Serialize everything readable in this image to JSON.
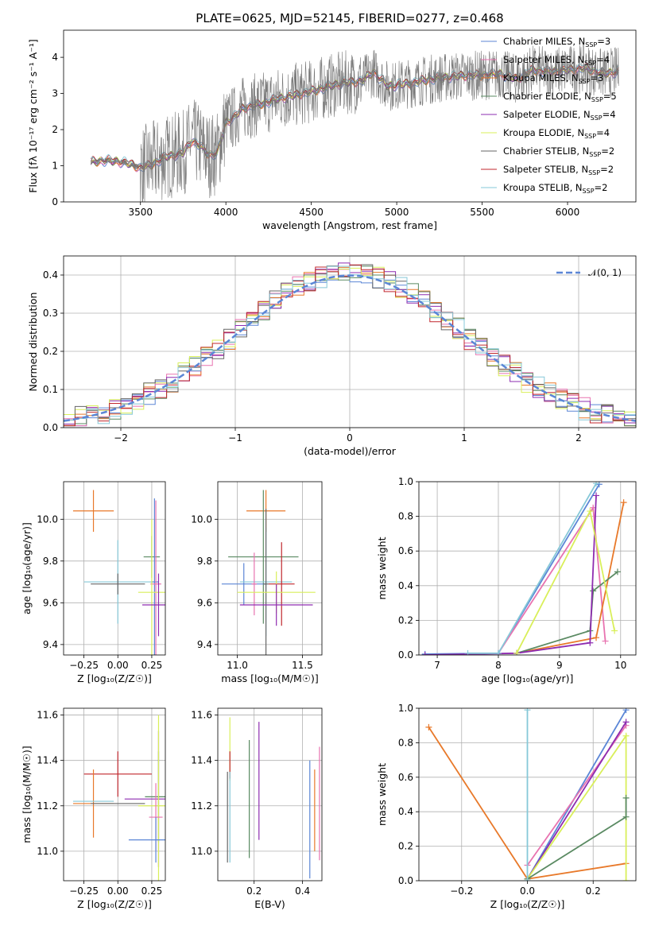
{
  "figure": {
    "title": "PLATE=0625, MJD=52145, FIBERID=0277, z=0.468"
  },
  "colors": {
    "chabrier_miles": "#5b86d6",
    "salpeter_miles": "#e873b0",
    "kroupa_miles": "#e8792a",
    "chabrier_elodie": "#5a8a62",
    "salpeter_elodie": "#8e2cb0",
    "kroupa_elodie": "#d9ef5a",
    "chabrier_stelib": "#666666",
    "salpeter_stelib": "#c0272d",
    "kroupa_stelib": "#86c8d8",
    "data": "#777777",
    "normal": "#5b86d6"
  },
  "chart_data": [
    {
      "id": "spectrum",
      "type": "line",
      "title": "PLATE=0625, MJD=52145, FIBERID=0277, z=0.468",
      "xlabel": "wavelength [Angstrom, rest frame]",
      "ylabel": "Flux [fλ 10⁻¹⁷ erg cm⁻² s⁻¹ A⁻¹]",
      "xlim": [
        3050,
        6400
      ],
      "ylim": [
        0,
        4.75
      ],
      "xticks": [
        3500,
        4000,
        4500,
        5000,
        5500,
        6000
      ],
      "yticks": [
        0,
        1,
        2,
        3,
        4
      ],
      "legend_position": "top-right",
      "legend": [
        {
          "label": "Chabrier MILES, N",
          "sub": "SSP",
          "tail": "=3",
          "key": "chabrier_miles"
        },
        {
          "label": "Salpeter MILES, N",
          "sub": "SSP",
          "tail": "=4",
          "key": "salpeter_miles"
        },
        {
          "label": "Kroupa MILES, N",
          "sub": "SSP",
          "tail": "=3",
          "key": "kroupa_miles"
        },
        {
          "label": "Chabrier ELODIE, N",
          "sub": "SSP",
          "tail": "=5",
          "key": "chabrier_elodie"
        },
        {
          "label": "Salpeter ELODIE, N",
          "sub": "SSP",
          "tail": "=4",
          "key": "salpeter_elodie"
        },
        {
          "label": "Kroupa ELODIE, N",
          "sub": "SSP",
          "tail": "=4",
          "key": "kroupa_elodie"
        },
        {
          "label": "Chabrier STELIB, N",
          "sub": "SSP",
          "tail": "=2",
          "key": "chabrier_stelib"
        },
        {
          "label": "Salpeter STELIB, N",
          "sub": "SSP",
          "tail": "=2",
          "key": "salpeter_stelib"
        },
        {
          "label": "Kroupa STELIB, N",
          "sub": "SSP",
          "tail": "=2",
          "key": "kroupa_stelib"
        }
      ],
      "model_continuum": {
        "x": [
          3210,
          3300,
          3400,
          3500,
          3550,
          3650,
          3750,
          3800,
          3850,
          3900,
          3950,
          4000,
          4050,
          4100,
          4200,
          4300,
          4400,
          4500,
          4600,
          4700,
          4800,
          4862,
          4950,
          5100,
          5200,
          5300,
          5400,
          5500,
          5600,
          5700,
          5800,
          5900,
          6000,
          6100,
          6200,
          6300
        ],
        "y": [
          1.1,
          1.15,
          1.1,
          0.95,
          1.0,
          1.25,
          1.35,
          1.7,
          1.55,
          1.3,
          1.35,
          2.2,
          2.35,
          2.6,
          2.7,
          2.85,
          2.95,
          3.05,
          3.2,
          3.3,
          3.35,
          3.6,
          3.2,
          3.3,
          3.4,
          3.45,
          3.5,
          3.5,
          3.55,
          3.4,
          3.65,
          3.6,
          3.65,
          3.7,
          3.55,
          3.6
        ]
      }
    },
    {
      "id": "residual-histogram",
      "type": "line",
      "xlabel": "(data-model)/error",
      "ylabel": "Normed distribution",
      "xlim": [
        -2.5,
        2.5
      ],
      "ylim": [
        0,
        0.45
      ],
      "xticks": [
        -2,
        -1,
        0,
        1,
        2
      ],
      "xticklabels": [
        "−2",
        "−1",
        "0",
        "1",
        "2"
      ],
      "yticks": [
        0.0,
        0.1,
        0.2,
        0.3,
        0.4
      ],
      "yticklabels": [
        "0.0",
        "0.1",
        "0.2",
        "0.3",
        "0.4"
      ],
      "legend_position": "top-right",
      "legend_label": "𝒩(0, 1)",
      "gaussian": {
        "mean": 0,
        "sigma": 1
      }
    },
    {
      "id": "age-vs-Z",
      "type": "scatter",
      "xlabel": "Z [log₁₀(Z/Z☉)]",
      "ylabel": "age  [log₁₀(age/yr)]",
      "xlim": [
        -0.4,
        0.35
      ],
      "ylim": [
        9.35,
        10.18
      ],
      "xticks": [
        -0.25,
        0.0,
        0.25
      ],
      "xticklabels": [
        "−0.25",
        "0.00",
        "0.25"
      ],
      "yticks": [
        9.4,
        9.6,
        9.8,
        10.0
      ],
      "yticklabels": [
        "9.4",
        "9.6",
        "9.8",
        "10.0"
      ],
      "points": [
        {
          "key": "kroupa_miles",
          "x": -0.18,
          "y": 10.04,
          "xerr": 0.15,
          "yerr": 0.1
        },
        {
          "key": "chabrier_elodie",
          "x": 0.25,
          "y": 9.82,
          "xerr": 0.06,
          "yerr": 0.1
        },
        {
          "key": "chabrier_miles",
          "x": 0.27,
          "y": 9.7,
          "xerr": 0.03,
          "yerr": 0.4
        },
        {
          "key": "kroupa_stelib",
          "x": 0.0,
          "y": 9.7,
          "xerr": 0.25,
          "yerr": 0.2
        },
        {
          "key": "chabrier_stelib",
          "x": 0.0,
          "y": 9.69,
          "xerr": 0.2,
          "yerr": 0.05
        },
        {
          "key": "salpeter_miles",
          "x": 0.28,
          "y": 9.69,
          "xerr": 0.04,
          "yerr": 0.4
        },
        {
          "key": "kroupa_elodie",
          "x": 0.25,
          "y": 9.65,
          "xerr": 0.1,
          "yerr": 0.35
        },
        {
          "key": "salpeter_elodie",
          "x": 0.3,
          "y": 9.59,
          "xerr": 0.12,
          "yerr": 0.15
        }
      ]
    },
    {
      "id": "age-vs-mass",
      "type": "scatter",
      "xlabel": "mass [log₁₀(M/M☉)]",
      "ylabel": "",
      "xlim": [
        10.85,
        11.65
      ],
      "ylim": [
        9.35,
        10.18
      ],
      "xticks": [
        11.0,
        11.5
      ],
      "xticklabels": [
        "11.0",
        "11.5"
      ],
      "yticks": [
        9.4,
        9.6,
        9.8,
        10.0
      ],
      "yticklabels": [
        "9.4",
        "9.6",
        "9.8",
        "10.0"
      ],
      "points": [
        {
          "key": "kroupa_miles",
          "x": 11.22,
          "y": 10.04,
          "xerr": 0.15,
          "yerr": 0.1
        },
        {
          "key": "chabrier_elodie",
          "x": 11.2,
          "y": 9.82,
          "xerr": 0.27,
          "yerr": 0.32
        },
        {
          "key": "chabrier_miles",
          "x": 11.05,
          "y": 9.69,
          "xerr": 0.17,
          "yerr": 0.1
        },
        {
          "key": "kroupa_stelib",
          "x": 11.22,
          "y": 9.7,
          "xerr": 0.2,
          "yerr": 0.26
        },
        {
          "key": "chabrier_stelib",
          "x": 11.22,
          "y": 9.69,
          "xerr": 0.02,
          "yerr": 0.36
        },
        {
          "key": "salpeter_stelib",
          "x": 11.34,
          "y": 9.69,
          "xerr": 0.1,
          "yerr": 0.2
        },
        {
          "key": "salpeter_miles",
          "x": 11.13,
          "y": 9.69,
          "xerr": 0.02,
          "yerr": 0.15
        },
        {
          "key": "kroupa_elodie",
          "x": 11.3,
          "y": 9.65,
          "xerr": 0.3,
          "yerr": 0.1
        },
        {
          "key": "salpeter_elodie",
          "x": 11.3,
          "y": 9.59,
          "xerr": 0.28,
          "yerr": 0.1
        }
      ]
    },
    {
      "id": "mass-weight-vs-age",
      "type": "line",
      "xlabel": "age  [log₁₀(age/yr)]",
      "ylabel": "mass weight",
      "xlim": [
        6.7,
        10.25
      ],
      "ylim": [
        0,
        1.0
      ],
      "xticks": [
        7,
        8,
        9,
        10
      ],
      "xticklabels": [
        "7",
        "8",
        "9",
        "10"
      ],
      "yticks": [
        0.0,
        0.2,
        0.4,
        0.6,
        0.8,
        1.0
      ],
      "yticklabels": [
        "0.0",
        "0.2",
        "0.4",
        "0.6",
        "0.8",
        "1.0"
      ],
      "series": [
        {
          "key": "chabrier_miles",
          "x": [
            6.8,
            8.0,
            9.65
          ],
          "y": [
            0.005,
            0.01,
            0.985
          ]
        },
        {
          "key": "salpeter_miles",
          "x": [
            8.0,
            9.55,
            9.75
          ],
          "y": [
            0.01,
            0.85,
            0.08
          ]
        },
        {
          "key": "kroupa_miles",
          "x": [
            8.3,
            9.6,
            10.05
          ],
          "y": [
            0.01,
            0.1,
            0.88
          ]
        },
        {
          "key": "chabrier_elodie",
          "x": [
            8.3,
            9.5,
            9.55,
            9.95
          ],
          "y": [
            0.01,
            0.14,
            0.37,
            0.48
          ]
        },
        {
          "key": "salpeter_elodie",
          "x": [
            6.8,
            8.3,
            9.5,
            9.6
          ],
          "y": [
            0.0,
            0.01,
            0.07,
            0.92
          ]
        },
        {
          "key": "kroupa_elodie",
          "x": [
            8.3,
            9.5,
            9.9
          ],
          "y": [
            0.01,
            0.83,
            0.14
          ]
        },
        {
          "key": "kroupa_stelib",
          "x": [
            7.5,
            8.0,
            9.6
          ],
          "y": [
            0.01,
            0.01,
            0.99
          ]
        }
      ]
    },
    {
      "id": "mass-vs-Z",
      "type": "scatter",
      "xlabel": "Z [log₁₀(Z/Z☉)]",
      "ylabel": "mass [log₁₀(M/M☉)]",
      "xlim": [
        -0.4,
        0.35
      ],
      "ylim": [
        10.87,
        11.63
      ],
      "xticks": [
        -0.25,
        0.0,
        0.25
      ],
      "xticklabels": [
        "−0.25",
        "0.00",
        "0.25"
      ],
      "yticks": [
        11.0,
        11.2,
        11.4,
        11.6
      ],
      "yticklabels": [
        "11.0",
        "11.2",
        "11.4",
        "11.6"
      ],
      "points": [
        {
          "key": "salpeter_stelib",
          "x": 0.0,
          "y": 11.34,
          "xerr": 0.25,
          "yerr": 0.1
        },
        {
          "key": "kroupa_miles",
          "x": -0.18,
          "y": 11.21,
          "xerr": 0.15,
          "yerr": 0.15
        },
        {
          "key": "kroupa_stelib",
          "x": -0.18,
          "y": 11.22,
          "xerr": 0.15,
          "yerr": 0.0
        },
        {
          "key": "chabrier_stelib",
          "x": 0.0,
          "y": 11.21,
          "xerr": 0.2,
          "yerr": 0.0
        },
        {
          "key": "salpeter_elodie",
          "x": 0.3,
          "y": 11.23,
          "xerr": 0.25,
          "yerr": 0.3
        },
        {
          "key": "chabrier_elodie",
          "x": 0.3,
          "y": 11.24,
          "xerr": 0.1,
          "yerr": 0.2
        },
        {
          "key": "kroupa_elodie",
          "x": 0.3,
          "y": 11.2,
          "xerr": 0.15,
          "yerr": 0.4
        },
        {
          "key": "salpeter_miles",
          "x": 0.28,
          "y": 11.15,
          "xerr": 0.05,
          "yerr": 0.15
        },
        {
          "key": "chabrier_miles",
          "x": 0.28,
          "y": 11.05,
          "xerr": 0.2,
          "yerr": 0.1
        }
      ]
    },
    {
      "id": "mass-vs-EBV",
      "type": "scatter",
      "xlabel": "E(B-V)",
      "ylabel": "",
      "xlim": [
        0.05,
        0.48
      ],
      "ylim": [
        10.87,
        11.63
      ],
      "xticks": [
        0.2,
        0.4
      ],
      "xticklabels": [
        "0.2",
        "0.4"
      ],
      "yticks": [
        11.0,
        11.2,
        11.4,
        11.6
      ],
      "yticklabels": [
        "11.0",
        "11.2",
        "11.4",
        "11.6"
      ],
      "points": [
        {
          "key": "kroupa_elodie",
          "x": 0.1,
          "y": 11.45,
          "yerr": 0.14
        },
        {
          "key": "salpeter_stelib",
          "x": 0.1,
          "y": 11.38,
          "yerr": 0.06
        },
        {
          "key": "chabrier_stelib",
          "x": 0.09,
          "y": 11.15,
          "yerr": 0.2
        },
        {
          "key": "kroupa_stelib",
          "x": 0.1,
          "y": 11.15,
          "yerr": 0.2
        },
        {
          "key": "chabrier_elodie",
          "x": 0.18,
          "y": 11.23,
          "yerr": 0.26
        },
        {
          "key": "salpeter_elodie",
          "x": 0.22,
          "y": 11.31,
          "yerr": 0.26
        },
        {
          "key": "chabrier_miles",
          "x": 0.43,
          "y": 11.14,
          "yerr": 0.26
        },
        {
          "key": "kroupa_miles",
          "x": 0.45,
          "y": 11.18,
          "yerr": 0.18
        },
        {
          "key": "salpeter_miles",
          "x": 0.47,
          "y": 11.21,
          "yerr": 0.25
        }
      ]
    },
    {
      "id": "mass-weight-vs-Z",
      "type": "line",
      "xlabel": "Z [log₁₀(Z/Z☉)]",
      "ylabel": "mass weight",
      "xlim": [
        -0.33,
        0.33
      ],
      "ylim": [
        0,
        1.0
      ],
      "xticks": [
        -0.2,
        0.0,
        0.2
      ],
      "xticklabels": [
        "−0.2",
        "0.0",
        "0.2"
      ],
      "yticks": [
        0.0,
        0.2,
        0.4,
        0.6,
        0.8,
        1.0
      ],
      "yticklabels": [
        "0.0",
        "0.2",
        "0.4",
        "0.6",
        "0.8",
        "1.0"
      ],
      "series": [
        {
          "key": "kroupa_miles",
          "x": [
            -0.3,
            0.0,
            0.3
          ],
          "y": [
            0.89,
            0.01,
            0.1
          ]
        },
        {
          "key": "chabrier_miles",
          "x": [
            0.0,
            0.3
          ],
          "y": [
            0.01,
            0.99
          ]
        },
        {
          "key": "salpeter_miles",
          "x": [
            0.0,
            0.3
          ],
          "y": [
            0.09,
            0.9
          ]
        },
        {
          "key": "salpeter_elodie",
          "x": [
            0.0,
            0.3
          ],
          "y": [
            0.01,
            0.92
          ]
        },
        {
          "key": "kroupa_elodie",
          "x": [
            0.0,
            0.3,
            0.3
          ],
          "y": [
            0.01,
            0.84,
            0.0
          ]
        },
        {
          "key": "chabrier_elodie",
          "x": [
            0.0,
            0.3,
            0.3
          ],
          "y": [
            0.01,
            0.37,
            0.48
          ]
        },
        {
          "key": "kroupa_stelib",
          "x": [
            0.0,
            0.0
          ],
          "y": [
            0.0,
            0.99
          ]
        }
      ]
    }
  ]
}
